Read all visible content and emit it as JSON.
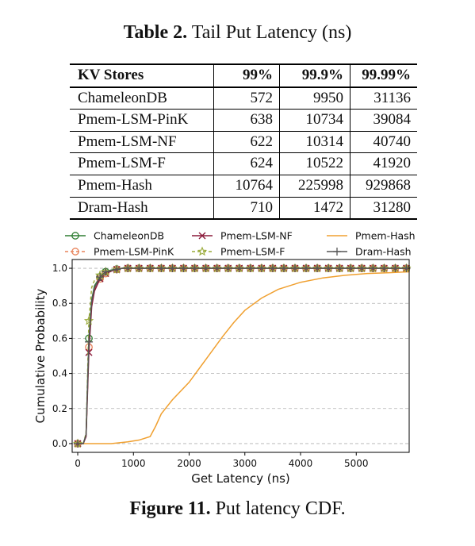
{
  "table": {
    "caption_label": "Table 2.",
    "caption_text": "Tail Put Latency (ns)",
    "headers": [
      "KV Stores",
      "99%",
      "99.9%",
      "99.99%"
    ],
    "rows": [
      [
        "ChameleonDB",
        "572",
        "9950",
        "31136"
      ],
      [
        "Pmem-LSM-PinK",
        "638",
        "10734",
        "39084"
      ],
      [
        "Pmem-LSM-NF",
        "622",
        "10314",
        "40740"
      ],
      [
        "Pmem-LSM-F",
        "624",
        "10522",
        "41920"
      ],
      [
        "Pmem-Hash",
        "10764",
        "225998",
        "929868"
      ],
      [
        "Dram-Hash",
        "710",
        "1472",
        "31280"
      ]
    ]
  },
  "figure": {
    "caption_label": "Figure 11.",
    "caption_text": "Put latency CDF."
  },
  "chart_data": {
    "type": "line",
    "xlabel": "Get Latency (ns)",
    "ylabel": "Cumulative Probability",
    "xlim": [
      -100,
      5950
    ],
    "ylim": [
      -0.05,
      1.05
    ],
    "xticks": [
      0,
      1000,
      2000,
      3000,
      4000,
      5000
    ],
    "yticks": [
      0.0,
      0.2,
      0.4,
      0.6,
      0.8,
      1.0
    ],
    "grid": "horizontal dashed",
    "legend": "top, three columns",
    "series": [
      {
        "name": "ChameleonDB",
        "color": "#2e7d32",
        "dash": "",
        "marker": "circle",
        "x": [
          0,
          100,
          150,
          200,
          250,
          300,
          400,
          500,
          600,
          800,
          1000,
          5950
        ],
        "y": [
          0.0,
          0.0,
          0.05,
          0.6,
          0.82,
          0.9,
          0.95,
          0.98,
          0.99,
          1.0,
          1.0,
          1.0
        ]
      },
      {
        "name": "Pmem-LSM-PinK",
        "color": "#e8835a",
        "dash": "4,3",
        "marker": "circle",
        "x": [
          0,
          100,
          150,
          200,
          250,
          300,
          400,
          500,
          650,
          800,
          1000,
          5950
        ],
        "y": [
          0.0,
          0.0,
          0.05,
          0.55,
          0.8,
          0.88,
          0.94,
          0.97,
          0.99,
          1.0,
          1.0,
          1.0
        ]
      },
      {
        "name": "Pmem-LSM-NF",
        "color": "#8b1a3a",
        "dash": "",
        "marker": "x",
        "x": [
          0,
          100,
          150,
          200,
          250,
          300,
          400,
          500,
          650,
          800,
          1000,
          5950
        ],
        "y": [
          0.0,
          0.0,
          0.04,
          0.52,
          0.78,
          0.87,
          0.94,
          0.97,
          0.99,
          1.0,
          1.0,
          1.0
        ]
      },
      {
        "name": "Pmem-LSM-F",
        "color": "#9aab3a",
        "dash": "4,3",
        "marker": "star",
        "x": [
          0,
          100,
          150,
          200,
          250,
          300,
          400,
          500,
          650,
          800,
          1000,
          5950
        ],
        "y": [
          0.0,
          0.0,
          0.06,
          0.7,
          0.89,
          0.93,
          0.96,
          0.98,
          0.99,
          1.0,
          1.0,
          1.0
        ]
      },
      {
        "name": "Pmem-Hash",
        "color": "#f0a030",
        "dash": "",
        "marker": "none",
        "x": [
          0,
          600,
          900,
          1100,
          1300,
          1400,
          1500,
          1700,
          2000,
          2300,
          2600,
          2800,
          3000,
          3300,
          3600,
          4000,
          4400,
          4800,
          5200,
          5600,
          5950
        ],
        "y": [
          0.0,
          0.0,
          0.01,
          0.02,
          0.04,
          0.1,
          0.17,
          0.25,
          0.35,
          0.48,
          0.61,
          0.69,
          0.76,
          0.83,
          0.88,
          0.92,
          0.945,
          0.96,
          0.97,
          0.975,
          0.98
        ]
      },
      {
        "name": "Dram-Hash",
        "color": "#555555",
        "dash": "",
        "marker": "plus",
        "x": [
          0,
          100,
          150,
          200,
          250,
          300,
          400,
          500,
          650,
          800,
          1000,
          5950
        ],
        "y": [
          0.0,
          0.0,
          0.05,
          0.58,
          0.81,
          0.89,
          0.95,
          0.98,
          0.99,
          1.0,
          1.0,
          1.0
        ]
      }
    ]
  }
}
